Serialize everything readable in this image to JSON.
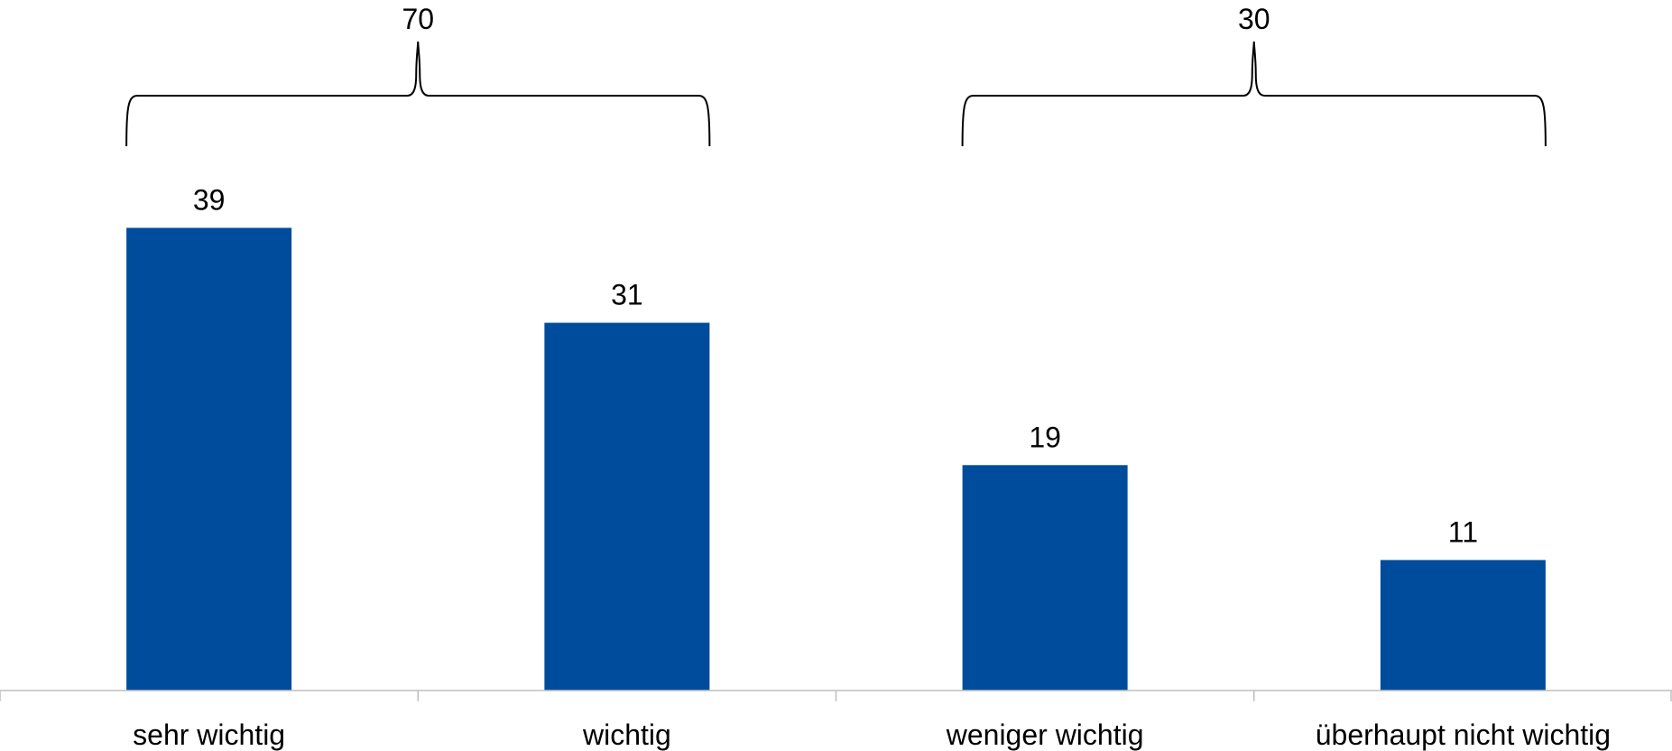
{
  "chart_data": {
    "type": "bar",
    "categories": [
      "sehr wichtig",
      "wichtig",
      "weniger wichtig",
      "überhaupt nicht wichtig"
    ],
    "values": [
      39,
      31,
      19,
      11
    ],
    "value_labels": [
      "39",
      "31",
      "19",
      "11"
    ],
    "bar_color": "#004C9C",
    "ylim": [
      0,
      42
    ],
    "grid": false,
    "legend": "none",
    "groups": [
      {
        "label": "70",
        "from_category": 0,
        "to_category": 1
      },
      {
        "label": "30",
        "from_category": 2,
        "to_category": 3
      }
    ]
  }
}
